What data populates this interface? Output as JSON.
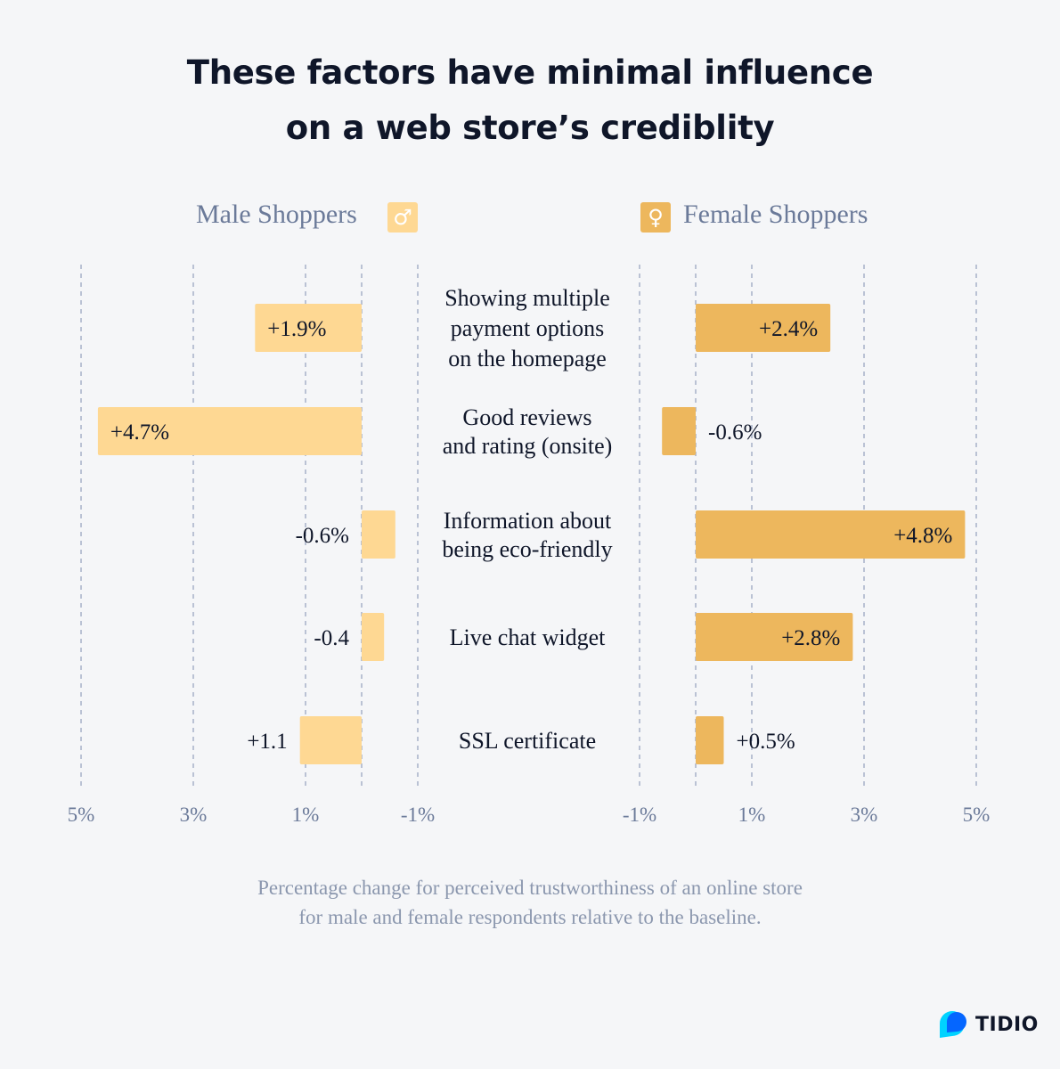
{
  "title": {
    "line1": "These factors have minimal influence",
    "line2": "on a web store’s crediblity"
  },
  "legend": {
    "male": {
      "label": "Male Shoppers",
      "icon": "male-symbol-icon",
      "glyph": "♂",
      "color": "#fed893"
    },
    "female": {
      "label": "Female Shoppers",
      "icon": "female-symbol-icon",
      "glyph": "♀",
      "color": "#edb75d"
    }
  },
  "chart_data": {
    "type": "bar",
    "orientation": "horizontal",
    "layout": "butterfly",
    "categories": [
      [
        "Showing multiple",
        "payment options",
        "on the homepage"
      ],
      [
        "Good reviews",
        "and rating (onsite)"
      ],
      [
        "Information about",
        "being eco-friendly"
      ],
      [
        "Live chat widget"
      ],
      [
        "SSL certificate"
      ]
    ],
    "series": [
      {
        "name": "Male Shoppers",
        "color": "#fed893",
        "values": [
          1.9,
          4.7,
          -0.6,
          -0.4,
          1.1
        ],
        "labels": [
          "+1.9%",
          "+4.7%",
          "-0.6%",
          "-0.4",
          "+1.1"
        ]
      },
      {
        "name": "Female Shoppers",
        "color": "#edb75d",
        "values": [
          2.4,
          -0.6,
          4.8,
          2.8,
          0.5
        ],
        "labels": [
          "+2.4%",
          "-0.6%",
          "+4.8%",
          "+2.8%",
          "+0.5%"
        ]
      }
    ],
    "male_axis": {
      "range": [
        -1,
        5
      ],
      "direction": "right-to-left",
      "tick_labels": [
        "5%",
        "3%",
        "1%",
        "-1%"
      ],
      "tick_values": [
        5,
        3,
        1,
        -1
      ]
    },
    "female_axis": {
      "range": [
        -1,
        5
      ],
      "direction": "left-to-right",
      "tick_labels": [
        "-1%",
        "1%",
        "3%",
        "5%"
      ],
      "tick_values": [
        -1,
        1,
        3,
        5
      ]
    },
    "gridlines": {
      "style": "dashed",
      "values": [
        -1,
        0,
        1,
        3,
        5
      ]
    }
  },
  "caption": {
    "line1": "Percentage change for perceived trustworthiness of an online store",
    "line2": "for male and female respondents relative to the baseline."
  },
  "brand": {
    "name": "TIDIO",
    "icon": "tidio-logo-icon",
    "colors": [
      "#0566ff",
      "#00d3ff"
    ]
  },
  "colors": {
    "text_dark": "#0f1629",
    "text_muted": "#6b7a99",
    "grid": "#a7b0c8"
  }
}
